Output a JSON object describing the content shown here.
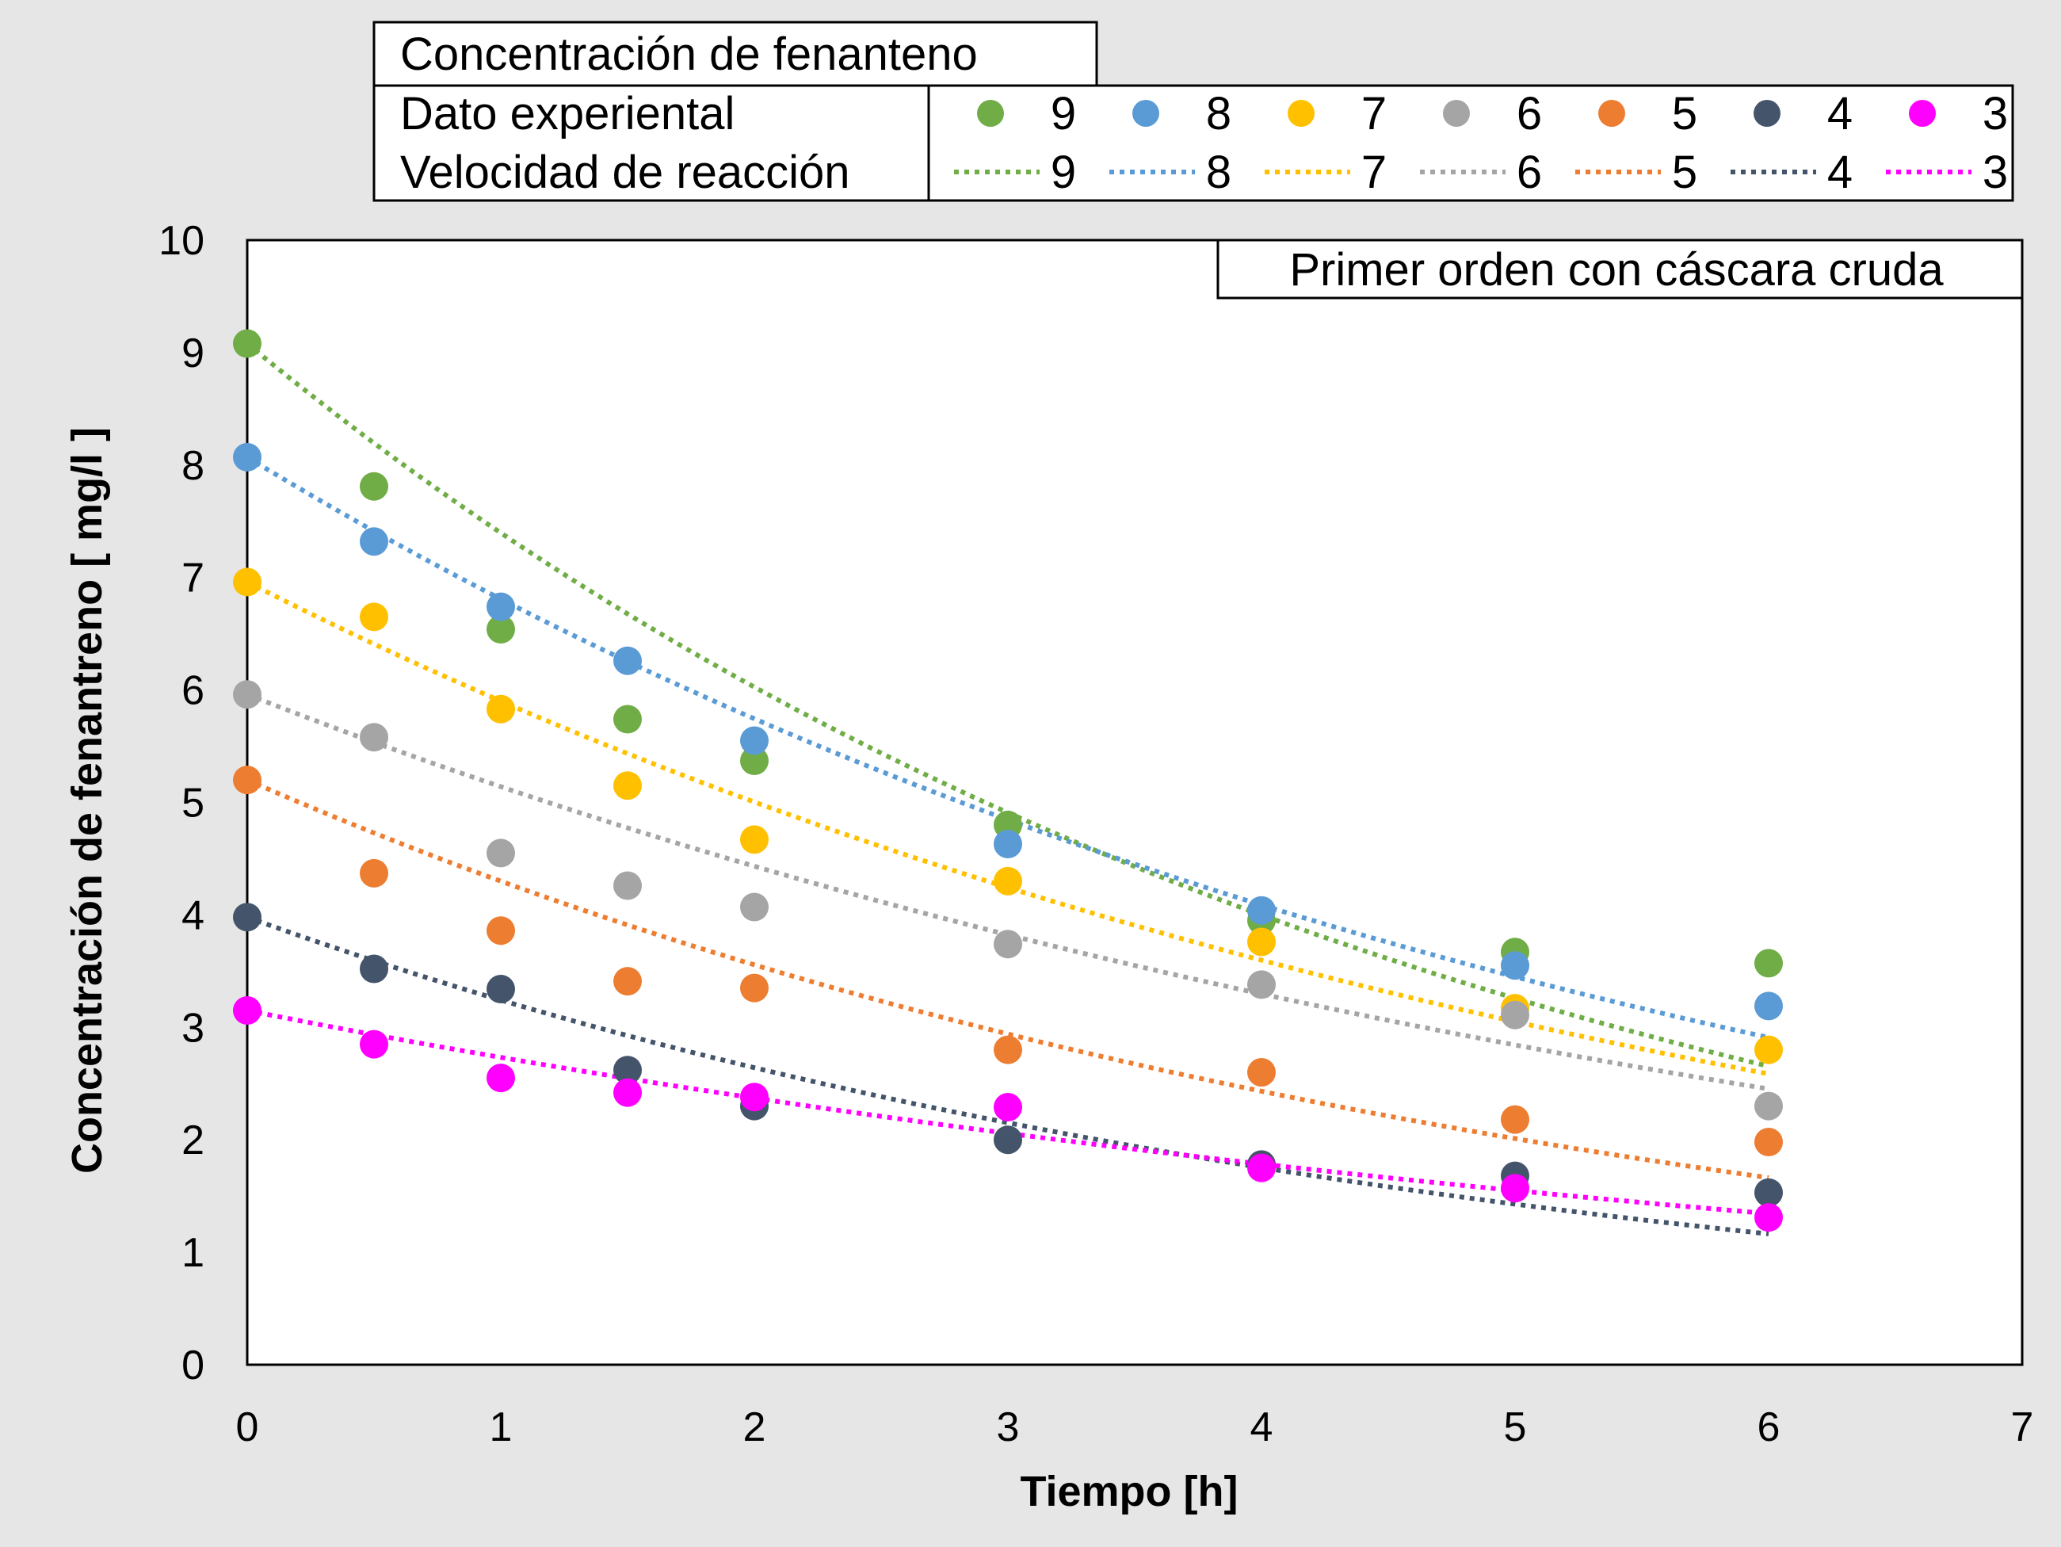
{
  "chart_data": {
    "type": "scatter",
    "title": "",
    "xlabel": "Tiempo [h]",
    "ylabel": "Concentración de fenantreno  [ mg/l ]",
    "xlim": [
      0,
      7
    ],
    "ylim": [
      0,
      10
    ],
    "xticks": [
      "0",
      "1",
      "2",
      "3",
      "4",
      "5",
      "6",
      "7"
    ],
    "yticks": [
      "0",
      "1",
      "2",
      "3",
      "4",
      "5",
      "6",
      "7",
      "8",
      "9",
      "10"
    ],
    "grid": false,
    "annotation": "Primer orden con cáscara cruda",
    "legend": {
      "placement": "top",
      "title": "Concentración de fenanteno",
      "row_labels": [
        "Dato experiental",
        "Velocidad de reacción"
      ]
    },
    "series": [
      {
        "name": "9",
        "color": "#70ad47",
        "x": [
          0,
          0.5,
          1,
          1.5,
          2,
          3,
          4,
          5,
          6
        ],
        "y": [
          9.08,
          7.81,
          6.54,
          5.74,
          5.37,
          4.8,
          3.95,
          3.67,
          3.57
        ],
        "fit_k": 0.205
      },
      {
        "name": "8",
        "color": "#5b9bd5",
        "x": [
          0,
          0.5,
          1,
          1.5,
          2,
          3,
          4,
          5,
          6
        ],
        "y": [
          8.07,
          7.32,
          6.74,
          6.26,
          5.55,
          4.63,
          4.04,
          3.55,
          3.19
        ],
        "fit_k": 0.17
      },
      {
        "name": "7",
        "color": "#ffc000",
        "x": [
          0,
          0.5,
          1,
          1.5,
          2,
          3,
          4,
          5,
          6
        ],
        "y": [
          6.96,
          6.65,
          5.83,
          5.15,
          4.67,
          4.3,
          3.76,
          3.17,
          2.8
        ],
        "fit_k": 0.165
      },
      {
        "name": "6",
        "color": "#a5a5a5",
        "x": [
          0,
          0.5,
          1,
          1.5,
          2,
          3,
          4,
          5,
          6
        ],
        "y": [
          5.96,
          5.58,
          4.55,
          4.26,
          4.07,
          3.74,
          3.38,
          3.11,
          2.3
        ],
        "fit_k": 0.148
      },
      {
        "name": "5",
        "color": "#ed7d31",
        "x": [
          0,
          0.5,
          1,
          1.5,
          2,
          3,
          4,
          5,
          6
        ],
        "y": [
          5.2,
          4.37,
          3.86,
          3.41,
          3.35,
          2.8,
          2.6,
          2.18,
          1.98
        ],
        "fit_k": 0.19
      },
      {
        "name": "4",
        "color": "#44546a",
        "x": [
          0,
          0.5,
          1,
          1.5,
          2,
          3,
          4,
          5,
          6
        ],
        "y": [
          3.98,
          3.52,
          3.34,
          2.62,
          2.3,
          2.0,
          1.78,
          1.68,
          1.53
        ],
        "fit_k": 0.205
      },
      {
        "name": "3",
        "color": "#ff00ff",
        "x": [
          0,
          0.5,
          1,
          1.5,
          2,
          3,
          4,
          5,
          6
        ],
        "y": [
          3.15,
          2.85,
          2.55,
          2.42,
          2.38,
          2.29,
          1.75,
          1.57,
          1.31
        ],
        "fit_k": 0.142
      }
    ]
  }
}
